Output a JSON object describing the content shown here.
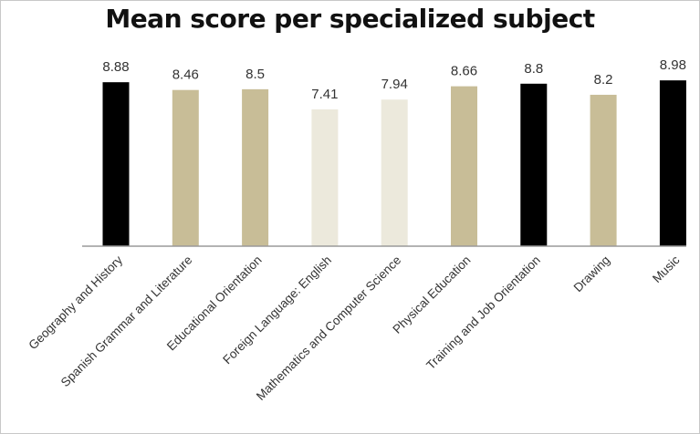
{
  "chart_data": {
    "type": "bar",
    "title": "Mean score per specialized subject",
    "xlabel": "",
    "ylabel": "",
    "ylim": [
      0,
      10
    ],
    "grid": false,
    "legend": "none",
    "categories": [
      "Geography and History",
      "Spanish Grammar and Literature",
      "Educational Orientation",
      "Foreign Language: English",
      "Mathematics and Computer Science",
      "Physical Education",
      "Training and Job Orientation",
      "Drawing",
      "Music"
    ],
    "values": [
      8.88,
      8.46,
      8.5,
      7.41,
      7.94,
      8.66,
      8.8,
      8.2,
      8.98
    ],
    "data_labels": [
      "8.88",
      "8.46",
      "8.5",
      "7.41",
      "7.94",
      "8.66",
      "8.8",
      "8.2",
      "8.98"
    ],
    "bar_colors": [
      "#000000",
      "#c8bd97",
      "#c8bd97",
      "#ece9dc",
      "#ece9dc",
      "#c8bd97",
      "#000000",
      "#c8bd97",
      "#000000"
    ],
    "axis_color": "#9a9a9a"
  }
}
